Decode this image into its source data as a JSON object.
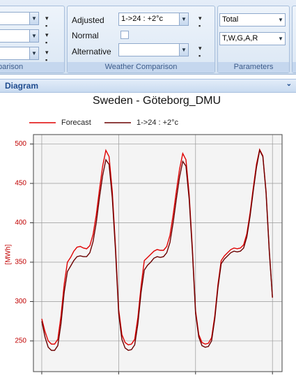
{
  "ribbon": {
    "left_group_label": "parison",
    "adjusted_label": "Adjusted",
    "adjusted_value": "1->24 : +2°c",
    "normal_label": "Normal",
    "alternative_label": "Alternative",
    "weather_group_label": "Weather Comparison",
    "total_value": "Total",
    "params_value": "T,W,G,A,R",
    "params_group_label": "Parameters"
  },
  "panel": {
    "title": "Diagram"
  },
  "chart_data": {
    "type": "line",
    "title": "Sweden - Göteborg_DMU",
    "y_label": "[MWh]",
    "x": [
      0,
      1,
      2,
      3,
      4,
      5,
      6,
      7,
      8,
      9,
      10,
      11,
      12,
      13,
      14,
      15,
      16,
      17,
      18,
      19,
      20,
      21,
      22,
      23,
      24,
      25,
      26,
      27,
      28,
      29,
      30,
      31,
      32,
      33,
      34,
      35,
      36,
      37,
      38,
      39,
      40,
      41,
      42,
      43,
      44,
      45,
      46,
      47,
      48,
      49,
      50,
      51,
      52,
      53,
      54,
      55,
      56,
      57,
      58,
      59,
      60,
      61,
      62,
      63,
      64,
      65,
      66,
      67,
      68,
      69,
      70,
      71,
      72
    ],
    "series": [
      {
        "name": "Forecast",
        "color": "#e00000",
        "values": [
          278,
          262,
          250,
          246,
          246,
          252,
          282,
          322,
          350,
          356,
          364,
          369,
          370,
          368,
          367,
          371,
          385,
          410,
          442,
          472,
          492,
          484,
          440,
          370,
          290,
          258,
          248,
          245,
          246,
          252,
          280,
          320,
          352,
          356,
          360,
          364,
          366,
          365,
          365,
          370,
          384,
          410,
          440,
          468,
          488,
          480,
          436,
          368,
          288,
          258,
          248,
          246,
          247,
          254,
          282,
          322,
          352,
          358,
          362,
          366,
          368,
          367,
          368,
          372,
          386,
          412,
          444,
          474,
          493,
          485,
          440,
          366,
          305
        ]
      },
      {
        "name": "1->24 : +2°c",
        "color": "#6b0000",
        "values": [
          275,
          255,
          242,
          238,
          238,
          244,
          272,
          312,
          338,
          345,
          352,
          357,
          358,
          357,
          357,
          362,
          376,
          400,
          432,
          460,
          480,
          474,
          432,
          365,
          285,
          252,
          241,
          238,
          239,
          245,
          272,
          312,
          340,
          346,
          350,
          355,
          357,
          356,
          357,
          362,
          375,
          400,
          430,
          458,
          478,
          472,
          430,
          364,
          285,
          255,
          244,
          242,
          243,
          250,
          278,
          318,
          348,
          354,
          358,
          362,
          364,
          363,
          364,
          368,
          382,
          408,
          440,
          470,
          492,
          484,
          438,
          364,
          305
        ]
      }
    ],
    "xlim": [
      -2.6,
      75
    ],
    "xticks": [
      0,
      24,
      48,
      72
    ],
    "ylim": [
      211,
      512
    ],
    "yticks": [
      250,
      300,
      350,
      400,
      450,
      500
    ],
    "grid": true
  }
}
